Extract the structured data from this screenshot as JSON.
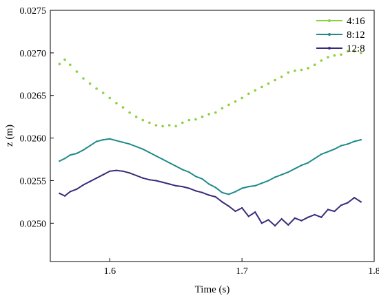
{
  "chart_data": {
    "type": "scatter",
    "xlabel": "Time (s)",
    "ylabel": "z (m)",
    "xlim": [
      1.555,
      1.8
    ],
    "ylim": [
      0.02455,
      0.0275
    ],
    "xticks": [
      1.6,
      1.7,
      1.8
    ],
    "xtick_labels": [
      "1.6",
      "1.7",
      "1.8"
    ],
    "yticks": [
      0.025,
      0.0255,
      0.026,
      0.0265,
      0.027,
      0.0275
    ],
    "ytick_labels": [
      "0.0250",
      "0.0255",
      "0.0260",
      "0.0265",
      "0.0270",
      "0.0275"
    ],
    "legend_position": "top-right",
    "series": [
      {
        "name": "4:16",
        "color": "#8BD13A",
        "marker": "dot",
        "points": [
          [
            1.562,
            0.02687
          ],
          [
            1.566,
            0.02692
          ],
          [
            1.57,
            0.02686
          ],
          [
            1.575,
            0.02678
          ],
          [
            1.58,
            0.0267
          ],
          [
            1.585,
            0.02664
          ],
          [
            1.59,
            0.02658
          ],
          [
            1.595,
            0.02653
          ],
          [
            1.6,
            0.02647
          ],
          [
            1.605,
            0.02641
          ],
          [
            1.61,
            0.02636
          ],
          [
            1.615,
            0.0263
          ],
          [
            1.62,
            0.02625
          ],
          [
            1.625,
            0.02621
          ],
          [
            1.63,
            0.02618
          ],
          [
            1.635,
            0.02615
          ],
          [
            1.64,
            0.02614
          ],
          [
            1.645,
            0.02615
          ],
          [
            1.65,
            0.02614
          ],
          [
            1.655,
            0.02618
          ],
          [
            1.66,
            0.02621
          ],
          [
            1.665,
            0.02622
          ],
          [
            1.67,
            0.02625
          ],
          [
            1.675,
            0.02628
          ],
          [
            1.68,
            0.0263
          ],
          [
            1.685,
            0.02635
          ],
          [
            1.69,
            0.02639
          ],
          [
            1.695,
            0.02643
          ],
          [
            1.7,
            0.02647
          ],
          [
            1.705,
            0.02652
          ],
          [
            1.71,
            0.02656
          ],
          [
            1.715,
            0.0266
          ],
          [
            1.72,
            0.02664
          ],
          [
            1.725,
            0.02668
          ],
          [
            1.73,
            0.02672
          ],
          [
            1.735,
            0.02677
          ],
          [
            1.74,
            0.02679
          ],
          [
            1.745,
            0.0268
          ],
          [
            1.75,
            0.02682
          ],
          [
            1.755,
            0.02686
          ],
          [
            1.76,
            0.02691
          ],
          [
            1.765,
            0.02695
          ],
          [
            1.77,
            0.02697
          ],
          [
            1.775,
            0.02698
          ],
          [
            1.78,
            0.02702
          ],
          [
            1.785,
            0.02702
          ],
          [
            1.79,
            0.027
          ]
        ]
      },
      {
        "name": "8:12",
        "color": "#1F8A8A",
        "marker": "line",
        "points": [
          [
            1.562,
            0.02573
          ],
          [
            1.566,
            0.02576
          ],
          [
            1.57,
            0.0258
          ],
          [
            1.575,
            0.02582
          ],
          [
            1.58,
            0.02586
          ],
          [
            1.585,
            0.02591
          ],
          [
            1.59,
            0.02596
          ],
          [
            1.595,
            0.02598
          ],
          [
            1.6,
            0.02599
          ],
          [
            1.605,
            0.02597
          ],
          [
            1.61,
            0.02595
          ],
          [
            1.615,
            0.02593
          ],
          [
            1.62,
            0.0259
          ],
          [
            1.625,
            0.02587
          ],
          [
            1.63,
            0.02583
          ],
          [
            1.635,
            0.02579
          ],
          [
            1.64,
            0.02575
          ],
          [
            1.645,
            0.02571
          ],
          [
            1.65,
            0.02567
          ],
          [
            1.655,
            0.02563
          ],
          [
            1.66,
            0.0256
          ],
          [
            1.665,
            0.02555
          ],
          [
            1.67,
            0.02552
          ],
          [
            1.675,
            0.02546
          ],
          [
            1.68,
            0.02542
          ],
          [
            1.685,
            0.02536
          ],
          [
            1.69,
            0.02534
          ],
          [
            1.695,
            0.02537
          ],
          [
            1.7,
            0.02541
          ],
          [
            1.705,
            0.02543
          ],
          [
            1.71,
            0.02544
          ],
          [
            1.715,
            0.02547
          ],
          [
            1.72,
            0.0255
          ],
          [
            1.725,
            0.02554
          ],
          [
            1.73,
            0.02557
          ],
          [
            1.735,
            0.0256
          ],
          [
            1.74,
            0.02564
          ],
          [
            1.745,
            0.02568
          ],
          [
            1.75,
            0.02571
          ],
          [
            1.755,
            0.02576
          ],
          [
            1.76,
            0.02581
          ],
          [
            1.765,
            0.02584
          ],
          [
            1.77,
            0.02587
          ],
          [
            1.775,
            0.02591
          ],
          [
            1.78,
            0.02593
          ],
          [
            1.785,
            0.02596
          ],
          [
            1.79,
            0.02598
          ]
        ]
      },
      {
        "name": "12:8",
        "color": "#3B2A7A",
        "marker": "line",
        "points": [
          [
            1.562,
            0.02535
          ],
          [
            1.566,
            0.02532
          ],
          [
            1.57,
            0.02537
          ],
          [
            1.575,
            0.0254
          ],
          [
            1.58,
            0.02545
          ],
          [
            1.585,
            0.02549
          ],
          [
            1.59,
            0.02553
          ],
          [
            1.595,
            0.02557
          ],
          [
            1.6,
            0.02561
          ],
          [
            1.605,
            0.02562
          ],
          [
            1.61,
            0.02561
          ],
          [
            1.615,
            0.02559
          ],
          [
            1.62,
            0.02556
          ],
          [
            1.625,
            0.02553
          ],
          [
            1.63,
            0.02551
          ],
          [
            1.635,
            0.0255
          ],
          [
            1.64,
            0.02548
          ],
          [
            1.645,
            0.02546
          ],
          [
            1.65,
            0.02544
          ],
          [
            1.655,
            0.02543
          ],
          [
            1.66,
            0.02541
          ],
          [
            1.665,
            0.02538
          ],
          [
            1.67,
            0.02536
          ],
          [
            1.675,
            0.02533
          ],
          [
            1.68,
            0.02531
          ],
          [
            1.685,
            0.02525
          ],
          [
            1.69,
            0.0252
          ],
          [
            1.695,
            0.02514
          ],
          [
            1.7,
            0.02518
          ],
          [
            1.705,
            0.02508
          ],
          [
            1.71,
            0.02513
          ],
          [
            1.715,
            0.025
          ],
          [
            1.72,
            0.02504
          ],
          [
            1.725,
            0.02497
          ],
          [
            1.73,
            0.02505
          ],
          [
            1.735,
            0.02498
          ],
          [
            1.74,
            0.02506
          ],
          [
            1.745,
            0.02503
          ],
          [
            1.75,
            0.02507
          ],
          [
            1.755,
            0.0251
          ],
          [
            1.76,
            0.02507
          ],
          [
            1.765,
            0.02516
          ],
          [
            1.77,
            0.02514
          ],
          [
            1.775,
            0.02521
          ],
          [
            1.78,
            0.02524
          ],
          [
            1.785,
            0.0253
          ],
          [
            1.79,
            0.02525
          ]
        ]
      }
    ]
  }
}
